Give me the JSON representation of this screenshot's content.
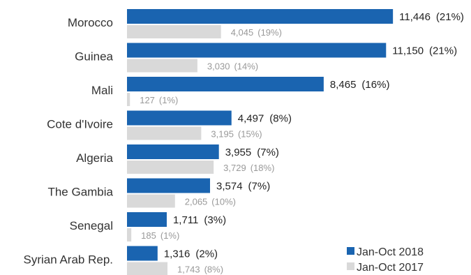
{
  "chart_data": {
    "type": "bar",
    "orientation": "horizontal",
    "categories": [
      "Morocco",
      "Guinea",
      "Mali",
      "Cote d'Ivoire",
      "Algeria",
      "The Gambia",
      "Senegal",
      "Syrian Arab Rep."
    ],
    "series": [
      {
        "name": "Jan-Oct 2018",
        "color": "#1a64b0",
        "values": [
          11446,
          11150,
          8465,
          4497,
          3955,
          3574,
          1711,
          1316
        ],
        "value_labels": [
          "11,446",
          "11,150",
          "8,465",
          "4,497",
          "3,955",
          "3,574",
          "1,711",
          "1,316"
        ],
        "pct_labels": [
          "(21%)",
          "(21%)",
          "(16%)",
          "(8%)",
          "(7%)",
          "(7%)",
          "(3%)",
          "(2%)"
        ]
      },
      {
        "name": "Jan-Oct 2017",
        "color": "#d9d9d9",
        "values": [
          4045,
          3030,
          127,
          3195,
          3729,
          2065,
          185,
          1743
        ],
        "value_labels": [
          "4,045",
          "3,030",
          "127",
          "3,195",
          "3,729",
          "2,065",
          "185",
          "1,743"
        ],
        "pct_labels": [
          "(19%)",
          "(14%)",
          "(1%)",
          "(15%)",
          "(18%)",
          "(10%)",
          "(1%)",
          "(8%)"
        ]
      }
    ],
    "xlim": [
      0,
      12000
    ],
    "legend_position": "bottom-right",
    "grid": false,
    "title": "",
    "xlabel": "",
    "ylabel": ""
  }
}
